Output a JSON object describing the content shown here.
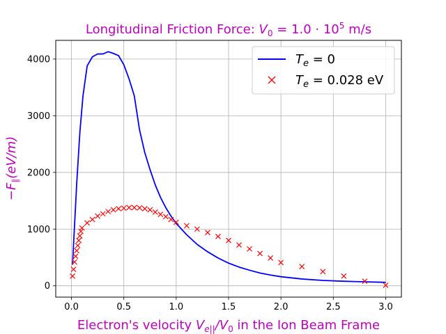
{
  "chart_data": {
    "type": "line",
    "title": "Longitudinal Friction Force: V₀ = 1.0 · 10⁵ m/s",
    "xlabel": "Electron's velocity Ve||/V₀ in the Ion Beam Frame",
    "ylabel": "−F∥ (eV/m)",
    "xlim": [
      -0.15,
      3.15
    ],
    "ylim": [
      -200,
      4330
    ],
    "xticks": [
      0.0,
      0.5,
      1.0,
      1.5,
      2.0,
      2.5,
      3.0
    ],
    "xtick_labels": [
      "0.0",
      "0.5",
      "1.0",
      "1.5",
      "2.0",
      "2.5",
      "3.0"
    ],
    "yticks": [
      0,
      1000,
      2000,
      3000,
      4000
    ],
    "ytick_labels": [
      "0",
      "1000",
      "2000",
      "3000",
      "4000"
    ],
    "grid": true,
    "legend_position": "top-right",
    "series": [
      {
        "name": "Te = 0",
        "style": "line",
        "color": "#0000ff",
        "x": [
          0.01,
          0.05,
          0.08,
          0.11,
          0.15,
          0.2,
          0.25,
          0.3,
          0.35,
          0.4,
          0.45,
          0.5,
          0.55,
          0.6,
          0.65,
          0.7,
          0.75,
          0.8,
          0.85,
          0.9,
          0.95,
          1.0,
          1.1,
          1.2,
          1.3,
          1.4,
          1.5,
          1.6,
          1.7,
          1.8,
          1.9,
          2.0,
          2.2,
          2.4,
          2.6,
          2.8,
          3.0
        ],
        "y": [
          370,
          1800,
          2700,
          3350,
          3880,
          4040,
          4090,
          4090,
          4130,
          4100,
          4060,
          3900,
          3650,
          3350,
          2750,
          2350,
          2050,
          1780,
          1560,
          1380,
          1230,
          1100,
          900,
          730,
          600,
          490,
          400,
          330,
          275,
          225,
          190,
          160,
          120,
          95,
          80,
          70,
          60
        ]
      },
      {
        "name": "Te = 0.028 eV",
        "style": "marker-x",
        "color": "#ff0000",
        "x": [
          0.01,
          0.02,
          0.03,
          0.04,
          0.05,
          0.06,
          0.07,
          0.08,
          0.09,
          0.1,
          0.15,
          0.2,
          0.25,
          0.3,
          0.35,
          0.4,
          0.45,
          0.5,
          0.55,
          0.6,
          0.65,
          0.7,
          0.75,
          0.8,
          0.85,
          0.9,
          0.95,
          1.0,
          1.1,
          1.2,
          1.3,
          1.4,
          1.5,
          1.6,
          1.7,
          1.8,
          1.9,
          2.0,
          2.2,
          2.4,
          2.6,
          2.8,
          3.0
        ],
        "y": [
          170,
          290,
          420,
          520,
          620,
          710,
          800,
          880,
          960,
          1020,
          1110,
          1170,
          1230,
          1270,
          1310,
          1340,
          1360,
          1370,
          1380,
          1380,
          1375,
          1360,
          1340,
          1300,
          1260,
          1220,
          1170,
          1120,
          1060,
          1000,
          940,
          870,
          800,
          720,
          650,
          570,
          490,
          410,
          340,
          250,
          170,
          80,
          10
        ]
      }
    ]
  },
  "legend": {
    "items": [
      {
        "label_italic": "T",
        "label_sub": "e",
        "label_rest": " = 0"
      },
      {
        "label_italic": "T",
        "label_sub": "e",
        "label_rest": " = 0.028 eV"
      }
    ]
  }
}
